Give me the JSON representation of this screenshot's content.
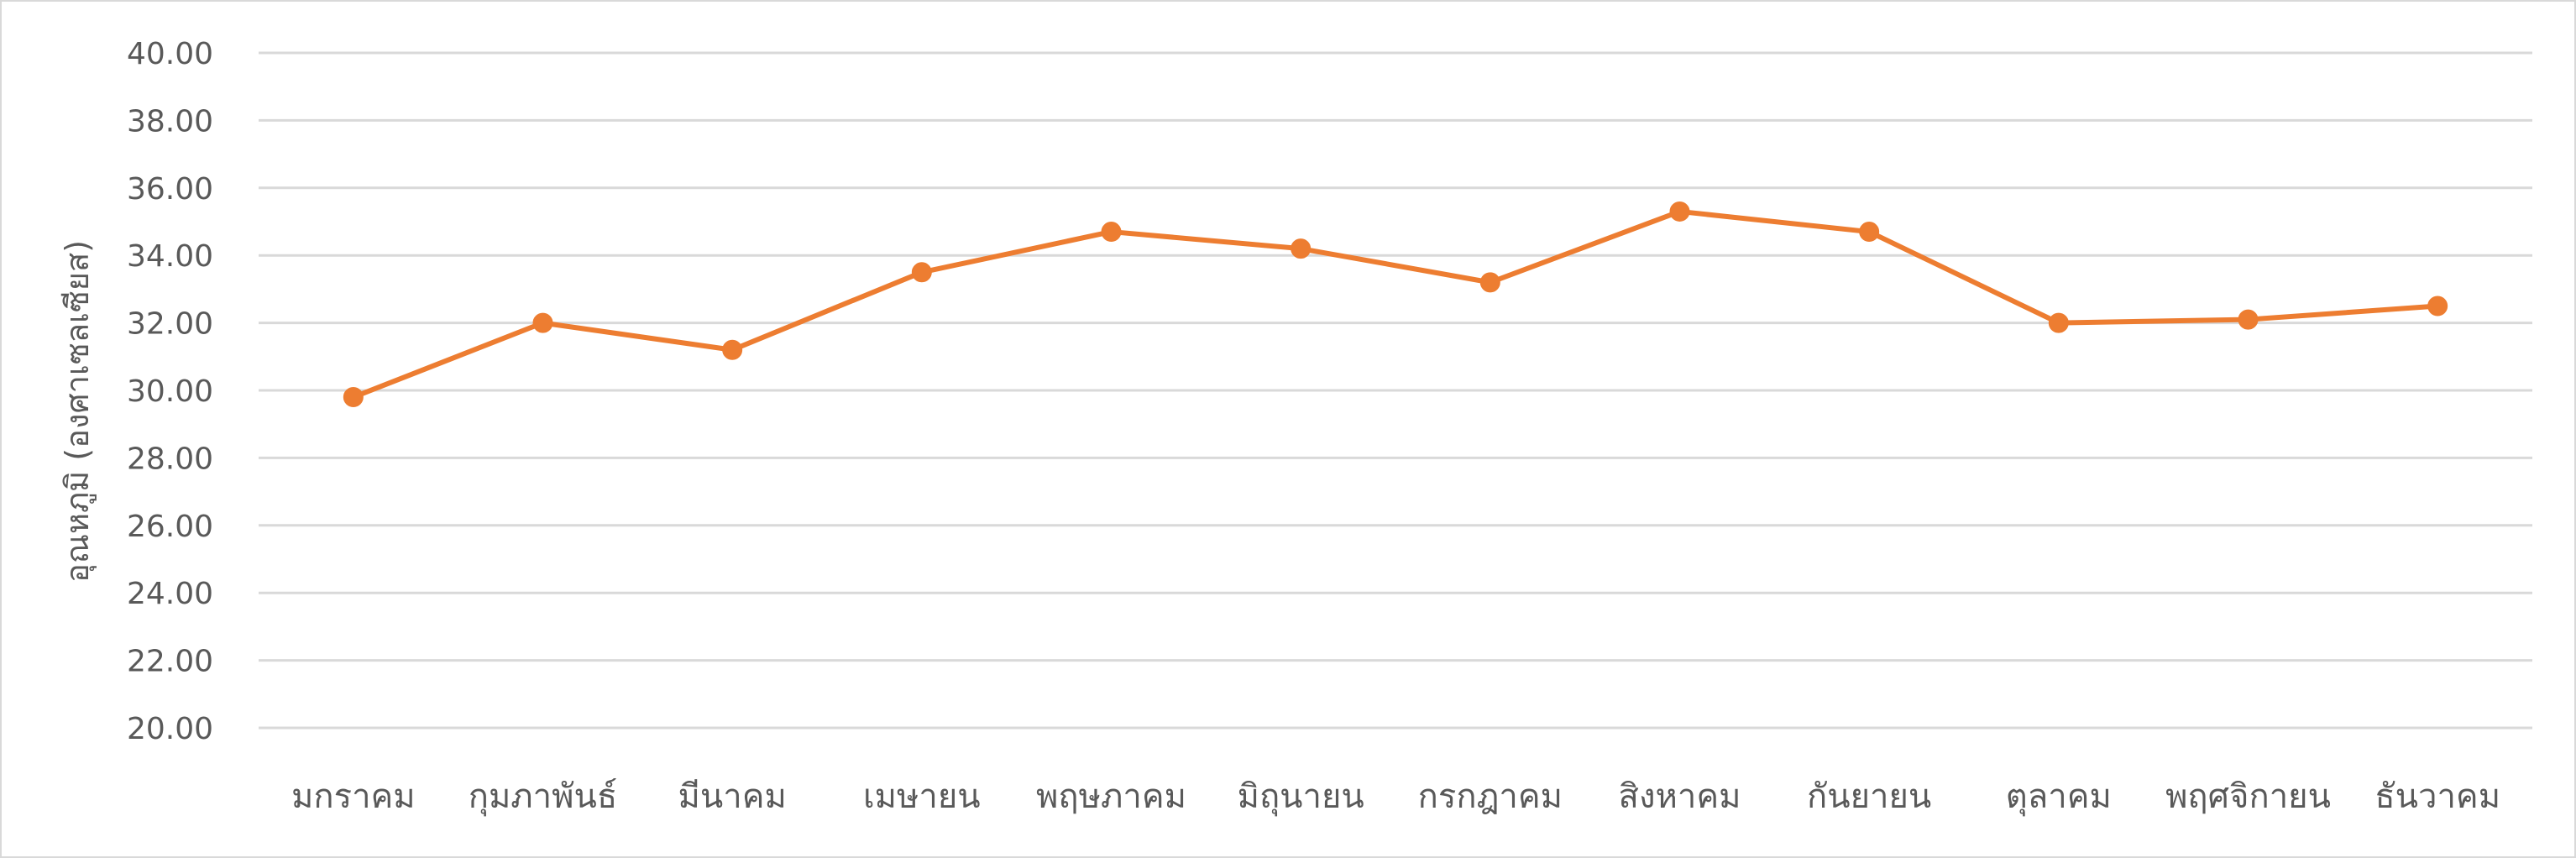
{
  "chart_data": {
    "type": "line",
    "title": "",
    "xlabel": "",
    "ylabel": "อุณหภูมิ (องศาเซลเซียส)",
    "ylim": [
      20,
      40
    ],
    "ytick_step": 2,
    "ytick_labels": [
      "20.00",
      "22.00",
      "24.00",
      "26.00",
      "28.00",
      "30.00",
      "32.00",
      "34.00",
      "36.00",
      "38.00",
      "40.00"
    ],
    "categories": [
      "มกราคม",
      "กุมภาพันธ์",
      "มีนาคม",
      "เมษายน",
      "พฤษภาคม",
      "มิถุนายน",
      "กรกฎาคม",
      "สิงหาคม",
      "กันยายน",
      "ตุลาคม",
      "พฤศจิกายน",
      "ธันวาคม"
    ],
    "series": [
      {
        "values": [
          29.8,
          32.0,
          31.2,
          33.5,
          34.7,
          34.2,
          33.2,
          35.3,
          34.7,
          32.0,
          32.1,
          32.5
        ],
        "color": "#ed7d31"
      }
    ],
    "grid": true,
    "legend": "none"
  }
}
